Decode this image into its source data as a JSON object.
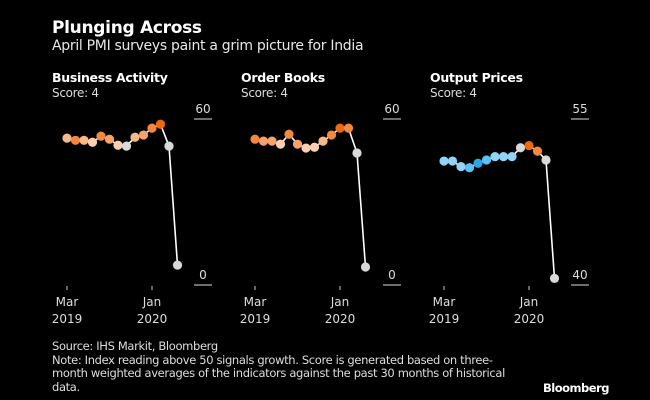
{
  "title": "Plunging Across",
  "subtitle": "April PMI surveys paint a grim picture for India",
  "source": "Source: IHS Markit, Bloomberg",
  "note": "Note: Index reading above 50 signals growth. Score is generated based on three-month weighted averages of the indicators against the past 30 months of historical data.",
  "brand": "Bloomberg",
  "chart_data": [
    {
      "type": "line",
      "title": "Business Activity",
      "subtitle": "Score: 4",
      "x": [
        "Mar 2019",
        "Apr 2019",
        "May 2019",
        "Jun 2019",
        "Jul 2019",
        "Aug 2019",
        "Sep 2019",
        "Oct 2019",
        "Nov 2019",
        "Dec 2019",
        "Jan 2020",
        "Feb 2020",
        "Mar 2020",
        "Apr 2020"
      ],
      "x_tick_labels": [
        [
          "Mar",
          "2019"
        ],
        [
          "Jan",
          "2020"
        ]
      ],
      "x_tick_indices": [
        0,
        10
      ],
      "values": [
        53.1,
        52.3,
        52.3,
        51.6,
        53.8,
        52.7,
        50.5,
        50.2,
        53.4,
        54.2,
        56.7,
        58.1,
        50.2,
        7.2
      ],
      "point_colors": [
        "#f7b98a",
        "#f5883f",
        "#f7b98a",
        "#fcd0ae",
        "#f5883f",
        "#f6a26a",
        "#fcd0ae",
        "#d9d9d9",
        "#f7b98a",
        "#f6a26a",
        "#f5883f",
        "#ee6a11",
        "#d9d9d9",
        "#d9d9d9"
      ],
      "y_tick_labels": [
        "60",
        "0"
      ],
      "ylim": [
        0,
        60
      ]
    },
    {
      "type": "line",
      "title": "Order Books",
      "subtitle": "Score: 4",
      "x": [
        "Mar 2019",
        "Apr 2019",
        "May 2019",
        "Jun 2019",
        "Jul 2019",
        "Aug 2019",
        "Sep 2019",
        "Oct 2019",
        "Nov 2019",
        "Dec 2019",
        "Jan 2020",
        "Feb 2020",
        "Mar 2020",
        "Apr 2020"
      ],
      "x_tick_labels": [
        [
          "Mar",
          "2019"
        ],
        [
          "Jan",
          "2020"
        ]
      ],
      "x_tick_indices": [
        0,
        10
      ],
      "values": [
        52.7,
        52.0,
        52.0,
        50.9,
        54.5,
        50.9,
        49.5,
        49.8,
        52.0,
        54.2,
        56.7,
        56.7,
        47.7,
        6.5
      ],
      "point_colors": [
        "#f5883f",
        "#f6a26a",
        "#f6a26a",
        "#fcd0ae",
        "#f5883f",
        "#f6a26a",
        "#fcd0ae",
        "#fcd0ae",
        "#f7b98a",
        "#f5883f",
        "#ee6a11",
        "#f5883f",
        "#d9d9d9",
        "#d9d9d9"
      ],
      "y_tick_labels": [
        "60",
        "0"
      ],
      "ylim": [
        0,
        60
      ]
    },
    {
      "type": "line",
      "title": "Output Prices",
      "subtitle": "Score: 4",
      "x": [
        "Mar 2019",
        "Apr 2019",
        "May 2019",
        "Jun 2019",
        "Jul 2019",
        "Aug 2019",
        "Sep 2019",
        "Oct 2019",
        "Nov 2019",
        "Dec 2019",
        "Jan 2020",
        "Feb 2020",
        "Mar 2020",
        "Apr 2020"
      ],
      "x_tick_labels": [
        [
          "Mar",
          "2019"
        ],
        [
          "Jan",
          "2020"
        ]
      ],
      "x_tick_indices": [
        0,
        10
      ],
      "values": [
        51.2,
        51.2,
        50.7,
        50.6,
        51.0,
        51.3,
        51.6,
        51.6,
        51.6,
        52.4,
        52.6,
        52.1,
        51.3,
        40.6
      ],
      "point_colors": [
        "#8fd3f7",
        "#8fd3f7",
        "#8fd3f7",
        "#5ec0f2",
        "#2ba4ea",
        "#5ec0f2",
        "#8fd3f7",
        "#8fd3f7",
        "#8fd3f7",
        "#d9d9d9",
        "#ee6a11",
        "#f5883f",
        "#d9d9d9",
        "#d9d9d9"
      ],
      "y_tick_labels": [
        "55",
        "40"
      ],
      "ylim": [
        40,
        55
      ]
    }
  ]
}
